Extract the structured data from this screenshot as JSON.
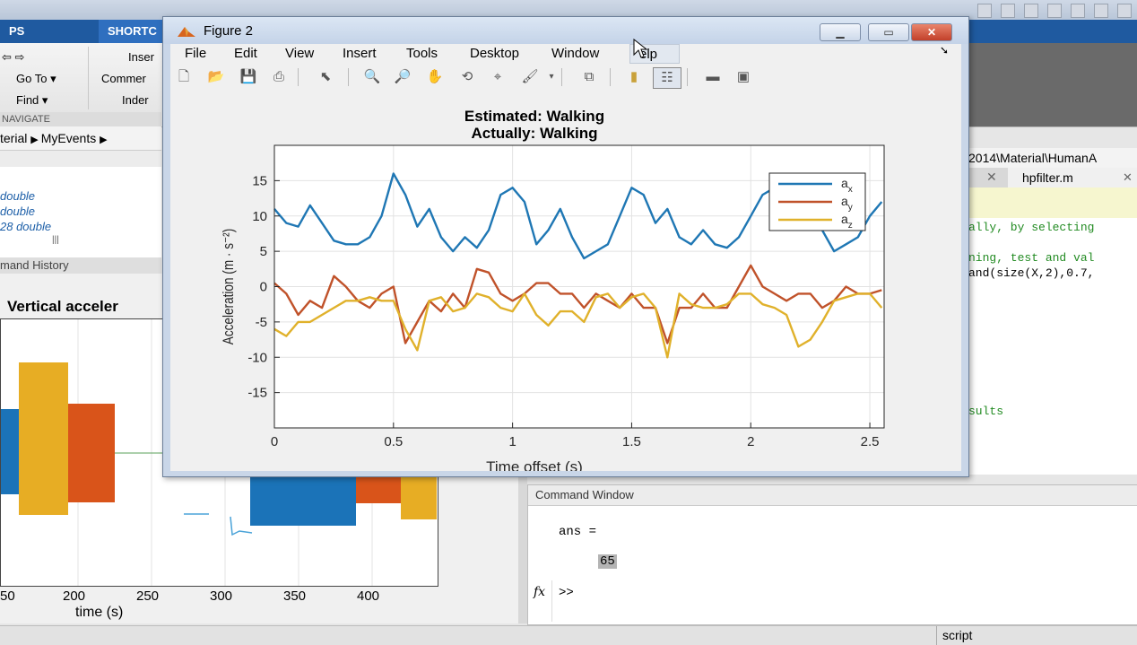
{
  "background": {
    "ribbon_tabs": [
      "PS",
      "SHORTC"
    ],
    "ribbon": {
      "goto": "Go To",
      "find": "Find",
      "insert": "Inser",
      "comment": "Commer",
      "indent": "Inder",
      "navigate": "NAVIGATE"
    },
    "breadcrumb": [
      "terial",
      "MyEvents"
    ],
    "path_text": "2014\\Material\\HumanA",
    "workspace_rows": [
      " double",
      "double",
      "28 double"
    ],
    "command_history_label": "mand History",
    "editor_tab": "hpfilter.m",
    "editor_lines": [
      "ally, by selecting",
      "",
      "ning, test and val",
      "and(size(X,2),0.7,",
      "",
      "",
      "",
      "",
      "",
      "",
      "sults"
    ],
    "left_plot": {
      "title": "Vertical acceler",
      "xlabel": "time (s)",
      "xticks": [
        "50",
        "200",
        "250",
        "300",
        "350",
        "400"
      ]
    },
    "command_window": {
      "title": "Command Window",
      "ans_line": "ans =",
      "value": "65",
      "fx": "fx",
      "prompt": ">>"
    },
    "status_text": "script"
  },
  "figure": {
    "window_title": "Figure 2",
    "menus": [
      "File",
      "Edit",
      "View",
      "Insert",
      "Tools",
      "Desktop",
      "Window",
      "Help"
    ],
    "menu_visible": [
      "File",
      "Edit",
      "View",
      "Insert",
      "Tools",
      "Desktop",
      "Window",
      "elp"
    ],
    "toolbar_icons": [
      "new-figure-icon",
      "open-icon",
      "save-icon",
      "print-icon",
      "pointer-icon",
      "zoom-in-icon",
      "zoom-out-icon",
      "pan-icon",
      "rotate-icon",
      "data-cursor-icon",
      "brush-icon",
      "link-icon",
      "colorbar-icon",
      "legend-icon",
      "hide-plot-tools-icon",
      "show-plot-tools-icon"
    ]
  },
  "chart_data": {
    "type": "line",
    "title": [
      "Estimated: Walking",
      "Actually: Walking"
    ],
    "xlabel": "Time offset (s)",
    "ylabel": "Acceleration (m · s⁻²)",
    "xlim": [
      0,
      2.56
    ],
    "ylim": [
      -20,
      20
    ],
    "xticks": [
      0,
      0.5,
      1,
      1.5,
      2,
      2.5
    ],
    "yticks": [
      -15,
      -10,
      -5,
      0,
      5,
      10,
      15
    ],
    "grid": true,
    "legend_position": "top-right",
    "series": [
      {
        "name": "a_x",
        "label_base": "a",
        "label_sub": "x",
        "color": "#1f77b4",
        "x": [
          0,
          0.05,
          0.1,
          0.15,
          0.2,
          0.25,
          0.3,
          0.35,
          0.4,
          0.45,
          0.5,
          0.55,
          0.6,
          0.65,
          0.7,
          0.75,
          0.8,
          0.85,
          0.9,
          0.95,
          1.0,
          1.05,
          1.1,
          1.15,
          1.2,
          1.25,
          1.3,
          1.35,
          1.4,
          1.45,
          1.5,
          1.55,
          1.6,
          1.65,
          1.7,
          1.75,
          1.8,
          1.85,
          1.9,
          1.95,
          2.0,
          2.05,
          2.1,
          2.15,
          2.2,
          2.25,
          2.3,
          2.35,
          2.4,
          2.45,
          2.5,
          2.55
        ],
        "values": [
          11,
          9,
          8.5,
          11.5,
          9,
          6.5,
          6,
          6,
          7,
          10,
          16,
          13,
          8.5,
          11,
          7,
          5,
          7,
          5.5,
          8,
          13,
          14,
          12,
          6,
          8,
          11,
          7,
          4,
          5,
          6,
          10,
          14,
          13,
          9,
          11,
          7,
          6,
          8,
          6,
          5.5,
          7,
          10,
          13,
          14,
          15,
          14,
          12,
          8,
          5,
          6,
          7,
          10,
          12
        ]
      },
      {
        "name": "a_y",
        "label_base": "a",
        "label_sub": "y",
        "color": "#c0522a",
        "x": [
          0,
          0.05,
          0.1,
          0.15,
          0.2,
          0.25,
          0.3,
          0.35,
          0.4,
          0.45,
          0.5,
          0.55,
          0.6,
          0.65,
          0.7,
          0.75,
          0.8,
          0.85,
          0.9,
          0.95,
          1.0,
          1.05,
          1.1,
          1.15,
          1.2,
          1.25,
          1.3,
          1.35,
          1.4,
          1.45,
          1.5,
          1.55,
          1.6,
          1.65,
          1.7,
          1.75,
          1.8,
          1.85,
          1.9,
          1.95,
          2.0,
          2.05,
          2.1,
          2.15,
          2.2,
          2.25,
          2.3,
          2.35,
          2.4,
          2.45,
          2.5,
          2.55
        ],
        "values": [
          0.5,
          -1,
          -4,
          -2,
          -3,
          1.5,
          0,
          -2,
          -3,
          -1,
          0,
          -8,
          -5,
          -2,
          -3.5,
          -1,
          -3,
          2.5,
          2,
          -1,
          -2,
          -1,
          0.5,
          0.5,
          -1,
          -1,
          -3,
          -1,
          -2,
          -3,
          -1,
          -3,
          -3,
          -8,
          -3,
          -3,
          -1,
          -3,
          -3,
          0,
          3,
          0,
          -1,
          -2,
          -1,
          -1,
          -3,
          -2,
          0,
          -1,
          -1,
          -0.5
        ]
      },
      {
        "name": "a_z",
        "label_base": "a",
        "label_sub": "z",
        "color": "#e0b12b",
        "x": [
          0,
          0.05,
          0.1,
          0.15,
          0.2,
          0.25,
          0.3,
          0.35,
          0.4,
          0.45,
          0.5,
          0.55,
          0.6,
          0.65,
          0.7,
          0.75,
          0.8,
          0.85,
          0.9,
          0.95,
          1.0,
          1.05,
          1.1,
          1.15,
          1.2,
          1.25,
          1.3,
          1.35,
          1.4,
          1.45,
          1.5,
          1.55,
          1.6,
          1.65,
          1.7,
          1.75,
          1.8,
          1.85,
          1.9,
          1.95,
          2.0,
          2.05,
          2.1,
          2.15,
          2.2,
          2.25,
          2.3,
          2.35,
          2.4,
          2.45,
          2.5,
          2.55
        ],
        "values": [
          -6,
          -7,
          -5,
          -5,
          -4,
          -3,
          -2,
          -2,
          -1.5,
          -2,
          -2,
          -6,
          -9,
          -2,
          -1.5,
          -3.5,
          -3,
          -1,
          -1.5,
          -3,
          -3.5,
          -1,
          -4,
          -5.5,
          -3.5,
          -3.5,
          -5,
          -1.5,
          -1,
          -3,
          -1.5,
          -1,
          -3,
          -10,
          -1,
          -2.5,
          -3,
          -3,
          -2.5,
          -1,
          -1,
          -2.5,
          -3,
          -4,
          -8.5,
          -7.5,
          -5,
          -2,
          -1.5,
          -1,
          -1,
          -3
        ]
      }
    ]
  }
}
